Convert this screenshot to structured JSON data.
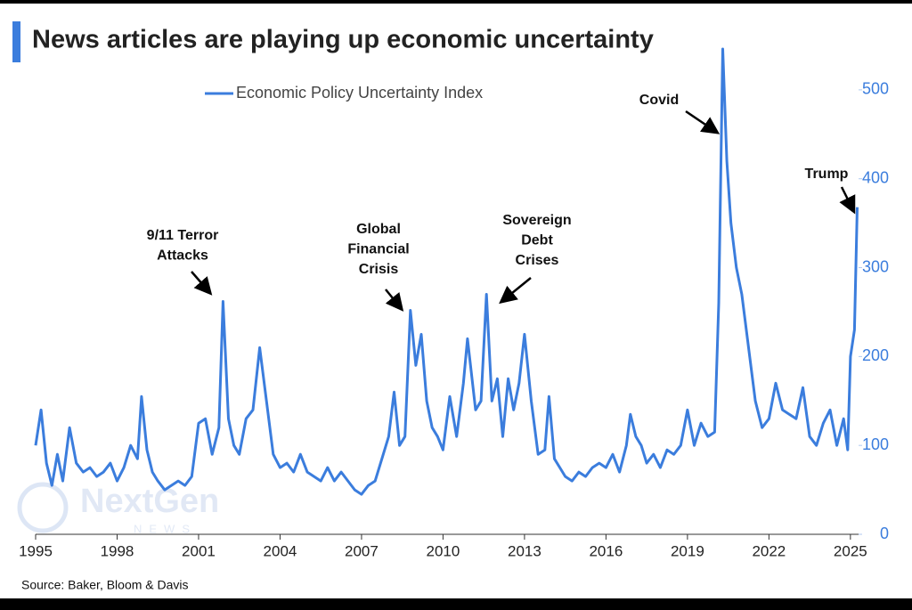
{
  "chart_data": {
    "type": "line",
    "title": "News articles are playing up economic uncertainty",
    "source": "Source: Baker, Bloom & Davis",
    "watermark": [
      "NextGen",
      "NEWS"
    ],
    "series": [
      {
        "name": "Economic Policy Uncertainty Index",
        "color": "#3b7ddd",
        "x": [
          1995.0,
          1995.2,
          1995.4,
          1995.6,
          1995.8,
          1996.0,
          1996.25,
          1996.5,
          1996.75,
          1997.0,
          1997.25,
          1997.5,
          1997.75,
          1998.0,
          1998.25,
          1998.5,
          1998.75,
          1998.9,
          1999.1,
          1999.3,
          1999.5,
          1999.75,
          2000.0,
          2000.25,
          2000.5,
          2000.75,
          2001.0,
          2001.25,
          2001.5,
          2001.75,
          2001.9,
          2002.1,
          2002.3,
          2002.5,
          2002.75,
          2003.0,
          2003.25,
          2003.5,
          2003.75,
          2004.0,
          2004.25,
          2004.5,
          2004.75,
          2005.0,
          2005.25,
          2005.5,
          2005.75,
          2006.0,
          2006.25,
          2006.5,
          2006.75,
          2007.0,
          2007.25,
          2007.5,
          2007.75,
          2008.0,
          2008.2,
          2008.4,
          2008.6,
          2008.8,
          2009.0,
          2009.2,
          2009.4,
          2009.6,
          2009.8,
          2010.0,
          2010.25,
          2010.5,
          2010.75,
          2010.9,
          2011.2,
          2011.4,
          2011.6,
          2011.8,
          2012.0,
          2012.2,
          2012.4,
          2012.6,
          2012.8,
          2013.0,
          2013.25,
          2013.5,
          2013.75,
          2013.9,
          2014.1,
          2014.3,
          2014.5,
          2014.75,
          2015.0,
          2015.25,
          2015.5,
          2015.75,
          2016.0,
          2016.25,
          2016.5,
          2016.75,
          2016.9,
          2017.1,
          2017.3,
          2017.5,
          2017.75,
          2018.0,
          2018.25,
          2018.5,
          2018.75,
          2019.0,
          2019.25,
          2019.5,
          2019.75,
          2020.0,
          2020.15,
          2020.3,
          2020.45,
          2020.6,
          2020.8,
          2021.0,
          2021.25,
          2021.5,
          2021.75,
          2022.0,
          2022.25,
          2022.5,
          2022.75,
          2023.0,
          2023.25,
          2023.5,
          2023.75,
          2024.0,
          2024.25,
          2024.5,
          2024.75,
          2024.9,
          2025.0,
          2025.15,
          2025.25
        ],
        "values": [
          100,
          140,
          80,
          55,
          90,
          60,
          120,
          80,
          70,
          75,
          65,
          70,
          80,
          60,
          75,
          100,
          85,
          155,
          95,
          70,
          60,
          50,
          55,
          60,
          55,
          65,
          125,
          130,
          90,
          120,
          262,
          130,
          100,
          90,
          130,
          140,
          210,
          150,
          90,
          75,
          80,
          70,
          90,
          70,
          65,
          60,
          75,
          60,
          70,
          60,
          50,
          45,
          55,
          60,
          85,
          110,
          160,
          100,
          110,
          252,
          190,
          225,
          150,
          120,
          110,
          95,
          155,
          110,
          170,
          220,
          140,
          150,
          270,
          150,
          175,
          110,
          175,
          140,
          170,
          225,
          150,
          90,
          95,
          155,
          85,
          75,
          65,
          60,
          70,
          65,
          75,
          80,
          75,
          90,
          70,
          100,
          135,
          110,
          100,
          80,
          90,
          75,
          95,
          90,
          100,
          140,
          100,
          125,
          110,
          115,
          260,
          546,
          420,
          350,
          300,
          270,
          210,
          150,
          120,
          130,
          170,
          140,
          135,
          130,
          165,
          110,
          100,
          125,
          140,
          100,
          130,
          95,
          200,
          230,
          368
        ]
      }
    ],
    "xlim": [
      1995,
      2025.3
    ],
    "xticks": [
      1995,
      1998,
      2001,
      2004,
      2007,
      2010,
      2013,
      2016,
      2019,
      2022,
      2025
    ],
    "ylim": [
      0,
      550
    ],
    "yticks": [
      0,
      100,
      200,
      300,
      400,
      500
    ],
    "annotations": [
      {
        "lines": [
          "9/11 Terror",
          "Attacks"
        ]
      },
      {
        "lines": [
          "Global",
          "Financial",
          "Crisis"
        ]
      },
      {
        "lines": [
          "Sovereign",
          "Debt",
          "Crises"
        ]
      },
      {
        "lines": [
          "Covid"
        ]
      },
      {
        "lines": [
          "Trump"
        ]
      }
    ]
  }
}
